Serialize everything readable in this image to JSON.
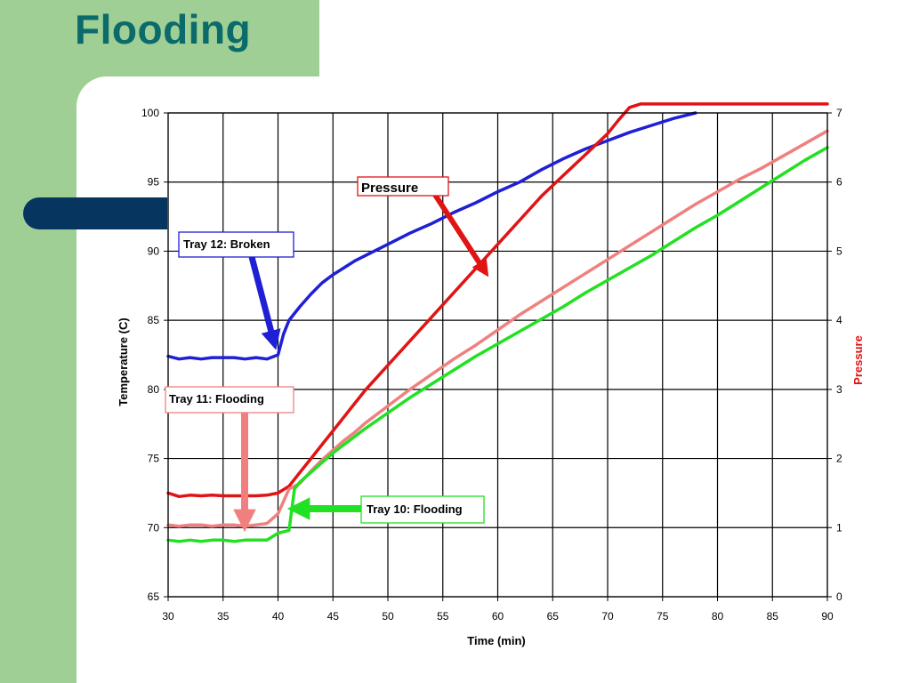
{
  "page": {
    "title": "Flooding"
  },
  "colors": {
    "title": "#0b6b6b",
    "sidebar": "#9fcf95",
    "pill": "#06365f"
  },
  "chart_data": {
    "type": "line",
    "title": "",
    "xlabel": "Time (min)",
    "ylabel": "Temperature (C)",
    "y2label": "Pressure",
    "xlim": [
      30,
      90
    ],
    "ylim": [
      65,
      100
    ],
    "y2lim": [
      0,
      7
    ],
    "grid": true,
    "x_ticks": [
      30,
      35,
      40,
      45,
      50,
      55,
      60,
      65,
      70,
      75,
      80,
      85,
      90
    ],
    "y_ticks": [
      65,
      70,
      75,
      80,
      85,
      90,
      95,
      100
    ],
    "y2_ticks": [
      0,
      1,
      2,
      3,
      4,
      5,
      6,
      7
    ],
    "series": [
      {
        "key": "tray12",
        "axis": "left",
        "color": "#1f1fd6",
        "points": [
          [
            30,
            82.4
          ],
          [
            31,
            82.2
          ],
          [
            32,
            82.3
          ],
          [
            33,
            82.2
          ],
          [
            34,
            82.3
          ],
          [
            35,
            82.3
          ],
          [
            36,
            82.3
          ],
          [
            37,
            82.2
          ],
          [
            38,
            82.3
          ],
          [
            39,
            82.2
          ],
          [
            40,
            82.5
          ],
          [
            40.5,
            84
          ],
          [
            41,
            85
          ],
          [
            42,
            86
          ],
          [
            43,
            86.9
          ],
          [
            44,
            87.7
          ],
          [
            45,
            88.3
          ],
          [
            46,
            88.8
          ],
          [
            47,
            89.3
          ],
          [
            48,
            89.7
          ],
          [
            50,
            90.5
          ],
          [
            52,
            91.3
          ],
          [
            54,
            92.0
          ],
          [
            56,
            92.8
          ],
          [
            58,
            93.5
          ],
          [
            60,
            94.3
          ],
          [
            62,
            95.0
          ],
          [
            64,
            95.9
          ],
          [
            66,
            96.7
          ],
          [
            68,
            97.4
          ],
          [
            70,
            98.0
          ],
          [
            72,
            98.6
          ],
          [
            74,
            99.1
          ],
          [
            76,
            99.6
          ],
          [
            78,
            100
          ]
        ]
      },
      {
        "key": "pressure",
        "axis": "right",
        "color": "#e01414",
        "points": [
          [
            30,
            1.5
          ],
          [
            31,
            1.45
          ],
          [
            32,
            1.47
          ],
          [
            33,
            1.46
          ],
          [
            34,
            1.47
          ],
          [
            35,
            1.46
          ],
          [
            36,
            1.46
          ],
          [
            37,
            1.46
          ],
          [
            38,
            1.46
          ],
          [
            39,
            1.47
          ],
          [
            40,
            1.5
          ],
          [
            41,
            1.6
          ],
          [
            42,
            1.8
          ],
          [
            43,
            2.0
          ],
          [
            44,
            2.2
          ],
          [
            45,
            2.4
          ],
          [
            46,
            2.6
          ],
          [
            47,
            2.8
          ],
          [
            48,
            3.0
          ],
          [
            50,
            3.35
          ],
          [
            52,
            3.7
          ],
          [
            54,
            4.05
          ],
          [
            56,
            4.4
          ],
          [
            58,
            4.75
          ],
          [
            60,
            5.1
          ],
          [
            62,
            5.45
          ],
          [
            64,
            5.8
          ],
          [
            66,
            6.1
          ],
          [
            68,
            6.4
          ],
          [
            70,
            6.7
          ],
          [
            71,
            6.9
          ],
          [
            72,
            7.08
          ],
          [
            73,
            7.13
          ],
          [
            80,
            7.13
          ],
          [
            90,
            7.13
          ]
        ]
      },
      {
        "key": "tray11",
        "axis": "left",
        "color": "#f08080",
        "points": [
          [
            30,
            70.2
          ],
          [
            31,
            70.1
          ],
          [
            32,
            70.2
          ],
          [
            33,
            70.2
          ],
          [
            34,
            70.1
          ],
          [
            35,
            70.2
          ],
          [
            36,
            70.2
          ],
          [
            37,
            70.1
          ],
          [
            38,
            70.2
          ],
          [
            39,
            70.3
          ],
          [
            40,
            71.0
          ],
          [
            41,
            72.8
          ],
          [
            42,
            73.2
          ],
          [
            43,
            74.1
          ],
          [
            44,
            74.9
          ],
          [
            45,
            75.6
          ],
          [
            46,
            76.3
          ],
          [
            47,
            76.9
          ],
          [
            48,
            77.6
          ],
          [
            50,
            78.8
          ],
          [
            52,
            80.0
          ],
          [
            54,
            81.1
          ],
          [
            56,
            82.2
          ],
          [
            58,
            83.2
          ],
          [
            60,
            84.3
          ],
          [
            62,
            85.4
          ],
          [
            64,
            86.4
          ],
          [
            66,
            87.4
          ],
          [
            68,
            88.4
          ],
          [
            70,
            89.4
          ],
          [
            72,
            90.4
          ],
          [
            74,
            91.4
          ],
          [
            76,
            92.4
          ],
          [
            78,
            93.4
          ],
          [
            80,
            94.3
          ],
          [
            82,
            95.2
          ],
          [
            84,
            96.0
          ],
          [
            86,
            96.9
          ],
          [
            88,
            97.8
          ],
          [
            90,
            98.7
          ]
        ]
      },
      {
        "key": "tray10",
        "axis": "left",
        "color": "#22e022",
        "points": [
          [
            30,
            69.1
          ],
          [
            31,
            69.0
          ],
          [
            32,
            69.1
          ],
          [
            33,
            69.0
          ],
          [
            34,
            69.1
          ],
          [
            35,
            69.1
          ],
          [
            36,
            69.0
          ],
          [
            37,
            69.1
          ],
          [
            38,
            69.1
          ],
          [
            39,
            69.1
          ],
          [
            40,
            69.6
          ],
          [
            41,
            69.8
          ],
          [
            41.5,
            72.8
          ],
          [
            42,
            73.3
          ],
          [
            43,
            74.0
          ],
          [
            44,
            74.7
          ],
          [
            45,
            75.4
          ],
          [
            46,
            76.0
          ],
          [
            47,
            76.6
          ],
          [
            48,
            77.2
          ],
          [
            50,
            78.3
          ],
          [
            52,
            79.4
          ],
          [
            54,
            80.4
          ],
          [
            56,
            81.4
          ],
          [
            58,
            82.4
          ],
          [
            60,
            83.3
          ],
          [
            62,
            84.2
          ],
          [
            64,
            85.1
          ],
          [
            66,
            86.0
          ],
          [
            68,
            87.0
          ],
          [
            70,
            87.9
          ],
          [
            72,
            88.8
          ],
          [
            74,
            89.7
          ],
          [
            76,
            90.7
          ],
          [
            78,
            91.7
          ],
          [
            80,
            92.6
          ],
          [
            82,
            93.6
          ],
          [
            84,
            94.6
          ],
          [
            86,
            95.6
          ],
          [
            88,
            96.6
          ],
          [
            90,
            97.5
          ]
        ]
      }
    ],
    "annotations": [
      {
        "key": "pressure",
        "text": "Pressure",
        "color": "#e01414",
        "border": "#e01414"
      },
      {
        "key": "tray12",
        "text": "Tray 12: Broken",
        "color": "#1f1fd6",
        "border": "#1f1fd6"
      },
      {
        "key": "tray11",
        "text": "Tray 11: Flooding",
        "color": "#f08080",
        "border": "#f08080"
      },
      {
        "key": "tray10",
        "text": "Tray 10: Flooding",
        "color": "#22e022",
        "border": "#22e022"
      }
    ]
  }
}
